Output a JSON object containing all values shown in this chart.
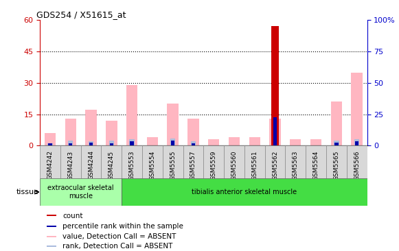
{
  "title": "GDS254 / X51615_at",
  "samples": [
    "GSM4242",
    "GSM4243",
    "GSM4244",
    "GSM4245",
    "GSM5553",
    "GSM5554",
    "GSM5555",
    "GSM5557",
    "GSM5559",
    "GSM5560",
    "GSM5561",
    "GSM5562",
    "GSM5563",
    "GSM5564",
    "GSM5565",
    "GSM5566"
  ],
  "count_values": [
    0,
    0,
    0,
    0,
    0,
    0,
    0,
    0,
    0,
    0,
    0,
    57,
    0,
    0,
    0,
    0
  ],
  "percentile_values": [
    1.0,
    1.0,
    1.5,
    1.0,
    2.0,
    0,
    2.5,
    1.0,
    0,
    0,
    0,
    13.5,
    0,
    0,
    1.5,
    2.0
  ],
  "pink_value": [
    6,
    13,
    17,
    12,
    29,
    4,
    20,
    13,
    3,
    4,
    4,
    13,
    3,
    3,
    21,
    35
  ],
  "light_blue_rank": [
    1.0,
    2.5,
    2.0,
    2.5,
    3.0,
    0,
    3.5,
    2.0,
    0,
    0,
    0,
    0,
    0,
    0,
    2.5,
    3.0
  ],
  "tissue_groups": [
    {
      "label": "extraocular skeletal\nmuscle",
      "start": 0,
      "end": 4,
      "color": "#aaffaa"
    },
    {
      "label": "tibialis anterior skeletal muscle",
      "start": 4,
      "end": 16,
      "color": "#44dd44"
    }
  ],
  "ylim_left": [
    0,
    60
  ],
  "ylim_right": [
    0,
    100
  ],
  "yticks_left": [
    0,
    15,
    30,
    45,
    60
  ],
  "yticks_right": [
    0,
    25,
    50,
    75,
    100
  ],
  "left_tick_labels": [
    "0",
    "15",
    "30",
    "45",
    "60"
  ],
  "right_tick_labels": [
    "0",
    "25",
    "50",
    "75",
    "100%"
  ],
  "bar_width": 0.35,
  "color_count": "#cc0000",
  "color_percentile": "#0000aa",
  "color_pink": "#ffb6c1",
  "color_lightblue": "#aabbdd",
  "bg_color": "#ffffff",
  "xticklabel_bg": "#dddddd",
  "left_axis_color": "#cc0000",
  "right_axis_color": "#0000cc",
  "grid_color": "#000000",
  "tissue_label_color": "#000000",
  "legend_items": [
    {
      "color": "#cc0000",
      "label": "count"
    },
    {
      "color": "#0000aa",
      "label": "percentile rank within the sample"
    },
    {
      "color": "#ffb6c1",
      "label": "value, Detection Call = ABSENT"
    },
    {
      "color": "#aabbdd",
      "label": "rank, Detection Call = ABSENT"
    }
  ]
}
